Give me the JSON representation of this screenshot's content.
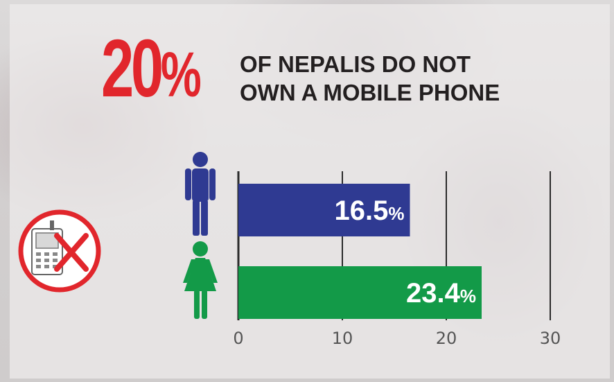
{
  "headline": {
    "stat_number": "20",
    "stat_unit": "%",
    "line1": "OF NEPALIS DO NOT",
    "line2": "OWN A MOBILE PHONE"
  },
  "icons": {
    "no_phone": "no-mobile-phone-icon",
    "male": "male-figure-icon",
    "female": "female-figure-icon"
  },
  "colors": {
    "headline_red": "#e1262c",
    "male_bar": "#2f3a92",
    "female_bar": "#139a48",
    "grid": "#2a2a2a"
  },
  "chart_data": {
    "type": "bar",
    "orientation": "horizontal",
    "categories": [
      "male",
      "female"
    ],
    "values": [
      16.5,
      23.4
    ],
    "value_labels": [
      "16.5",
      "23.4"
    ],
    "value_unit": "%",
    "xlim": [
      0,
      30
    ],
    "xticks": [
      0,
      10,
      20,
      30
    ],
    "tick_labels": [
      "0",
      "10",
      "20",
      "30"
    ],
    "grid": true
  }
}
